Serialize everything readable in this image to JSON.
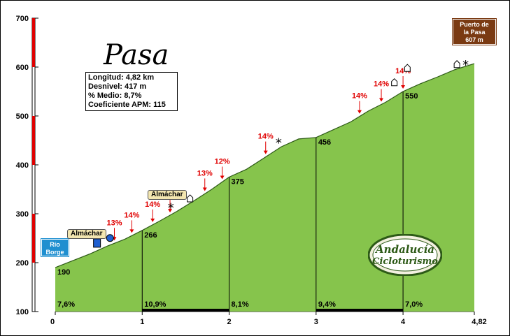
{
  "chart_data": {
    "type": "area",
    "title": "Pasa",
    "xlabel": "",
    "ylabel": "",
    "xlim": [
      0,
      4.82
    ],
    "ylim": [
      100,
      700
    ],
    "x_ticks": [
      "0",
      "1",
      "2",
      "3",
      "4",
      "4,82"
    ],
    "y_ticks": [
      "100",
      "200",
      "300",
      "400",
      "500",
      "600",
      "700"
    ],
    "profile": [
      {
        "x": 0.0,
        "y": 190
      },
      {
        "x": 0.2,
        "y": 204
      },
      {
        "x": 0.4,
        "y": 218
      },
      {
        "x": 0.6,
        "y": 234
      },
      {
        "x": 0.8,
        "y": 248
      },
      {
        "x": 1.0,
        "y": 266
      },
      {
        "x": 1.2,
        "y": 285
      },
      {
        "x": 1.4,
        "y": 305
      },
      {
        "x": 1.6,
        "y": 327
      },
      {
        "x": 1.8,
        "y": 350
      },
      {
        "x": 2.0,
        "y": 375
      },
      {
        "x": 2.2,
        "y": 391
      },
      {
        "x": 2.4,
        "y": 414
      },
      {
        "x": 2.6,
        "y": 437
      },
      {
        "x": 2.8,
        "y": 453
      },
      {
        "x": 3.0,
        "y": 456
      },
      {
        "x": 3.2,
        "y": 472
      },
      {
        "x": 3.4,
        "y": 488
      },
      {
        "x": 3.6,
        "y": 510
      },
      {
        "x": 3.8,
        "y": 528
      },
      {
        "x": 4.0,
        "y": 550
      },
      {
        "x": 4.2,
        "y": 566
      },
      {
        "x": 4.4,
        "y": 580
      },
      {
        "x": 4.6,
        "y": 595
      },
      {
        "x": 4.82,
        "y": 607
      }
    ],
    "km_points": [
      {
        "x": 0,
        "elevation": "190"
      },
      {
        "x": 1,
        "elevation": "266"
      },
      {
        "x": 2,
        "elevation": "375"
      },
      {
        "x": 3,
        "elevation": "456"
      },
      {
        "x": 4,
        "elevation": "550"
      }
    ],
    "segment_gradients": [
      "7,6%",
      "10,9%",
      "8,1%",
      "9,4%",
      "7,0%"
    ],
    "steep_markers": [
      {
        "x": 0.68,
        "label": "13%"
      },
      {
        "x": 0.88,
        "label": "14%"
      },
      {
        "x": 1.12,
        "label": "14%"
      },
      {
        "x": 1.32,
        "label": "13%"
      },
      {
        "x": 1.72,
        "label": "13%"
      },
      {
        "x": 1.92,
        "label": "12%"
      },
      {
        "x": 2.42,
        "label": "14%"
      },
      {
        "x": 3.5,
        "label": "14%"
      },
      {
        "x": 3.75,
        "label": "14%"
      },
      {
        "x": 4.0,
        "label": "14%"
      }
    ],
    "colors": {
      "fill": "#86c44c",
      "stroke": "#2d5a17",
      "axis_band_red": "#e00000",
      "steep_label": "#e00000"
    }
  },
  "stats": {
    "longitud": "Longitud: 4,82 km",
    "desnivel": "Desnivel: 417 m",
    "medio": "% Medio: 8,7%",
    "apm": "Coeficiente APM: 115"
  },
  "labels": {
    "start_sign": [
      "Río",
      "Borge"
    ],
    "summit_sign": [
      "Puerto de",
      "la Pasa",
      "607 m"
    ],
    "almachar_1": "Almáchar",
    "almachar_2": "Almáchar",
    "logo_line1": "Andalucía",
    "logo_line2": "Cicloturismo"
  }
}
